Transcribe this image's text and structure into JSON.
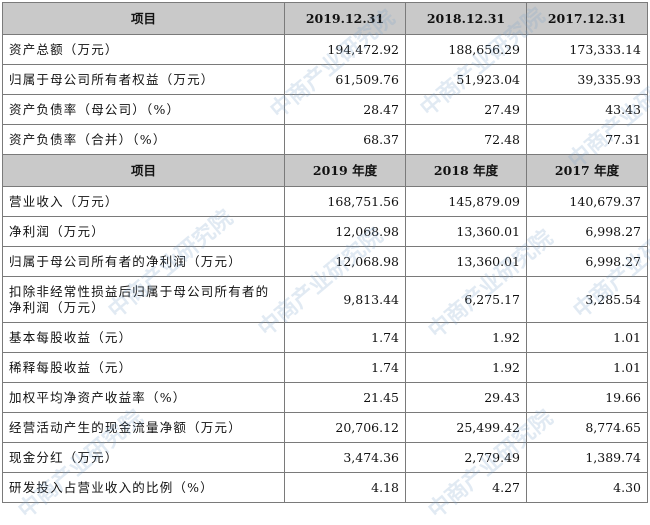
{
  "watermark_text": "中商产业研究院",
  "section1": {
    "header": [
      "项目",
      "2019.12.31",
      "2018.12.31",
      "2017.12.31"
    ],
    "rows": [
      [
        "资产总额（万元）",
        "194,472.92",
        "188,656.29",
        "173,333.14"
      ],
      [
        "归属于母公司所有者权益（万元）",
        "61,509.76",
        "51,923.04",
        "39,335.93"
      ],
      [
        "资产负债率（母公司）（%）",
        "28.47",
        "27.49",
        "43.43"
      ],
      [
        "资产负债率（合并）（%）",
        "68.37",
        "72.48",
        "77.31"
      ]
    ]
  },
  "section2": {
    "header": [
      "项目",
      "2019 年度",
      "2018 年度",
      "2017 年度"
    ],
    "rows": [
      [
        "营业收入（万元）",
        "168,751.56",
        "145,879.09",
        "140,679.37"
      ],
      [
        "净利润（万元）",
        "12,068.98",
        "13,360.01",
        "6,998.27"
      ],
      [
        "归属于母公司所有者的净利润（万元）",
        "12,068.98",
        "13,360.01",
        "6,998.27"
      ],
      [
        "扣除非经常性损益后归属于母公司所有者的净利润（万元）",
        "9,813.44",
        "6,275.17",
        "3,285.54"
      ],
      [
        "基本每股收益（元）",
        "1.74",
        "1.92",
        "1.01"
      ],
      [
        "稀释每股收益（元）",
        "1.74",
        "1.92",
        "1.01"
      ],
      [
        "加权平均净资产收益率（%）",
        "21.45",
        "29.43",
        "19.66"
      ],
      [
        "经营活动产生的现金流量净额（万元）",
        "20,706.12",
        "25,499.42",
        "8,774.65"
      ],
      [
        "现金分红（万元）",
        "3,474.36",
        "2,779.49",
        "1,389.74"
      ],
      [
        "研发投入占营业收入的比例（%）",
        "4.18",
        "4.27",
        "4.30"
      ]
    ]
  }
}
